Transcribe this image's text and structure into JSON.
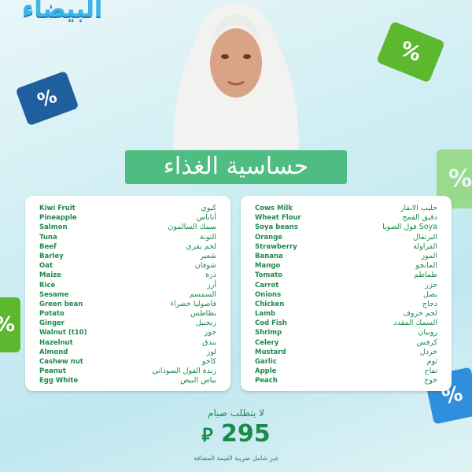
{
  "logo": "البيضاء",
  "title": "حساسية الغذاء",
  "left_list": [
    {
      "en": "Kiwi Fruit",
      "ar": "كيوي"
    },
    {
      "en": "Pineapple",
      "ar": "أناناس"
    },
    {
      "en": "Salmon",
      "ar": "سمك السالمون"
    },
    {
      "en": "Tuna",
      "ar": "التونة"
    },
    {
      "en": "Beef",
      "ar": "لحم بقري"
    },
    {
      "en": "Barley",
      "ar": "شعير"
    },
    {
      "en": "Oat",
      "ar": "شوفان"
    },
    {
      "en": "Maize",
      "ar": "ذرة"
    },
    {
      "en": "Rice",
      "ar": "أرز"
    },
    {
      "en": "Sesame",
      "ar": "السمسم"
    },
    {
      "en": "Green bean",
      "ar": "فاصوليا خضراء"
    },
    {
      "en": "Potato",
      "ar": "بطاطس"
    },
    {
      "en": "Ginger",
      "ar": "زنجبيل"
    },
    {
      "en": "Walnut (t10)",
      "ar": "جوز"
    },
    {
      "en": "Hazelnut",
      "ar": "بندق"
    },
    {
      "en": "Almond",
      "ar": "لوز"
    },
    {
      "en": "Cashew nut",
      "ar": "كاجو"
    },
    {
      "en": "Peanut",
      "ar": "زبدة الفول السوداني"
    },
    {
      "en": "Egg White",
      "ar": "بياض البيض"
    }
  ],
  "right_list": [
    {
      "en": "Cows Milk",
      "ar": "حليب الابقار"
    },
    {
      "en": "Wheat Flour",
      "ar": "دقيق القمح"
    },
    {
      "en": "Soya beans",
      "ar": "Soya فول الصويا"
    },
    {
      "en": "Orange",
      "ar": "البرتقال"
    },
    {
      "en": "Strawberry",
      "ar": "الفراولة"
    },
    {
      "en": "Banana",
      "ar": "الموز"
    },
    {
      "en": "Mango",
      "ar": "المانجو"
    },
    {
      "en": "Tomato",
      "ar": "طماطم"
    },
    {
      "en": "Carrot",
      "ar": "جزر"
    },
    {
      "en": "Onions",
      "ar": "بصل"
    },
    {
      "en": "Chicken",
      "ar": "دجاج"
    },
    {
      "en": "Lamb",
      "ar": "لحم خروف"
    },
    {
      "en": "Cod Fish",
      "ar": "السمك المقدد"
    },
    {
      "en": "Shrimp",
      "ar": "روبيان"
    },
    {
      "en": "Celery",
      "ar": "كرفس"
    },
    {
      "en": "Mustard",
      "ar": "خردل"
    },
    {
      "en": "Garlic",
      "ar": "ثوم"
    },
    {
      "en": "Apple",
      "ar": "تفاح"
    },
    {
      "en": "Peach",
      "ar": "خوخ"
    }
  ],
  "fasting_note": "لا يتطلب صيام",
  "price": "295",
  "currency_icon": "saudi-riyal-icon",
  "vat_note": "غير شامل ضريبة القيمة المضافة",
  "discount_symbol": "%",
  "colors": {
    "green": "#4fbd82",
    "text_green": "#1d8a4d",
    "tag_blue": "#1f5f9e",
    "tag_green": "#5cb82f"
  }
}
